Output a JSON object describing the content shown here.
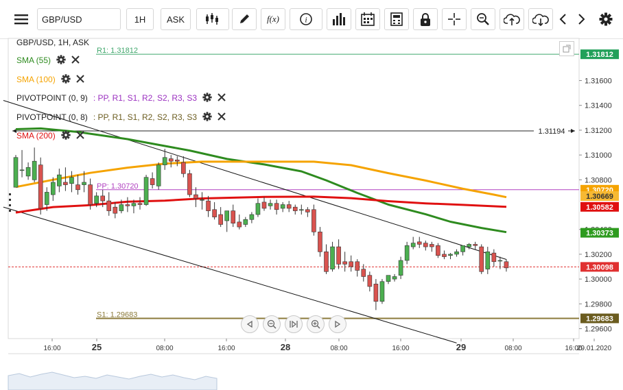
{
  "toolbar": {
    "menu_icon": "hamburger-menu-icon",
    "symbol": "GBP/USD",
    "timeframe": "1H",
    "price_type": "ASK",
    "tools": [
      "candlestick-type-icon",
      "draw-pencil-icon",
      "function-icon",
      "info-icon",
      "volume-bars-icon",
      "calendar-icon",
      "calculator-icon",
      "lock-icon",
      "crosshair-icon",
      "zoom-icon",
      "cloud-upload-icon",
      "cloud-download-icon",
      "chevron-left-icon",
      "chevron-right-icon",
      "gear-icon"
    ],
    "fx_label": "f(x)"
  },
  "legend": [
    {
      "label": "GBP/USD, 1H, ASK",
      "color": "#222222"
    },
    {
      "label": "SMA (55)",
      "color": "#2e8b1f"
    },
    {
      "label": "SMA (100)",
      "color": "#f5a300"
    },
    {
      "label": "PIVOTPOINT (0, 9)",
      "color": "#222222",
      "suffix": ": PP, R1, S1, R2, S2, R3, S3",
      "suffix_color": "#9b30c0"
    },
    {
      "label": "PIVOTPOINT (0, 8)",
      "color": "#222222",
      "suffix": ": PP, R1, S1, R2, S2, R3, S3",
      "suffix_color": "#6b5c1f"
    },
    {
      "label": "SMA (200)",
      "color": "#e01010"
    }
  ],
  "chart_data": {
    "type": "candlestick",
    "instrument": "GBP/USD",
    "interval": "1H",
    "y_range": [
      1.2952,
      1.3194
    ],
    "y_ticks": [
      "1.31600",
      "1.31400",
      "1.31200",
      "1.31000",
      "1.30800",
      "1.30400",
      "1.30200",
      "1.30000",
      "1.29800",
      "1.29600"
    ],
    "x_ticks": [
      "16:00",
      "25",
      "08:00",
      "16:00",
      "28",
      "08:00",
      "16:00",
      "29",
      "08:00",
      "16:00",
      "29.01.2020"
    ],
    "bold_x_ticks": [
      "25",
      "28",
      "29"
    ],
    "last_price": "1.30098",
    "candles": [
      [
        1.3074,
        1.31,
        1.3098,
        1.3074
      ],
      [
        1.3088,
        1.3104,
        1.3088,
        1.3082
      ],
      [
        1.3083,
        1.3094,
        1.309,
        1.308
      ],
      [
        1.308,
        1.3106,
        1.3095,
        1.3078
      ],
      [
        1.3092,
        1.3098,
        1.3057,
        1.3052
      ],
      [
        1.306,
        1.3074,
        1.307,
        1.3055
      ],
      [
        1.3068,
        1.3082,
        1.3078,
        1.3063
      ],
      [
        1.3075,
        1.3089,
        1.3084,
        1.307
      ],
      [
        1.3078,
        1.309,
        1.3076,
        1.3071
      ],
      [
        1.3077,
        1.3087,
        1.3082,
        1.307
      ],
      [
        1.3076,
        1.3084,
        1.3072,
        1.3068
      ],
      [
        1.3076,
        1.3087,
        1.3078,
        1.307
      ],
      [
        1.3076,
        1.3081,
        1.306,
        1.3056
      ],
      [
        1.3061,
        1.307,
        1.3067,
        1.3058
      ],
      [
        1.3067,
        1.3072,
        1.3063,
        1.3058
      ],
      [
        1.3063,
        1.307,
        1.3055,
        1.3051
      ],
      [
        1.3058,
        1.3062,
        1.3053,
        1.3049
      ],
      [
        1.3055,
        1.3064,
        1.306,
        1.3053
      ],
      [
        1.306,
        1.3066,
        1.3059,
        1.3054
      ],
      [
        1.3059,
        1.3064,
        1.3061,
        1.3053
      ],
      [
        1.3061,
        1.3066,
        1.306,
        1.3056
      ],
      [
        1.306,
        1.3084,
        1.3082,
        1.3059
      ],
      [
        1.3081,
        1.3086,
        1.3076,
        1.3073
      ],
      [
        1.3075,
        1.3094,
        1.3092,
        1.3072
      ],
      [
        1.3092,
        1.3105,
        1.3098,
        1.3088
      ],
      [
        1.3097,
        1.31,
        1.3095,
        1.309
      ],
      [
        1.3096,
        1.3099,
        1.3095,
        1.3091
      ],
      [
        1.3094,
        1.3099,
        1.3085,
        1.3082
      ],
      [
        1.3085,
        1.3088,
        1.3068,
        1.3066
      ],
      [
        1.3068,
        1.3074,
        1.3065,
        1.3058
      ],
      [
        1.3064,
        1.307,
        1.3064,
        1.3056
      ],
      [
        1.3063,
        1.3067,
        1.3055,
        1.305
      ],
      [
        1.3056,
        1.3062,
        1.305,
        1.3048
      ],
      [
        1.3052,
        1.3058,
        1.3044,
        1.3042
      ],
      [
        1.3047,
        1.3054,
        1.3055,
        1.3038
      ],
      [
        1.3055,
        1.306,
        1.3045,
        1.3042
      ],
      [
        1.3046,
        1.3052,
        1.3042,
        1.304
      ],
      [
        1.3044,
        1.305,
        1.3048,
        1.3042
      ],
      [
        1.3048,
        1.3054,
        1.3052,
        1.3045
      ],
      [
        1.3052,
        1.3065,
        1.3061,
        1.305
      ],
      [
        1.3062,
        1.3066,
        1.3057,
        1.3055
      ],
      [
        1.3059,
        1.3064,
        1.3061,
        1.3056
      ],
      [
        1.3061,
        1.3064,
        1.3056,
        1.3052
      ],
      [
        1.3057,
        1.3062,
        1.306,
        1.3054
      ],
      [
        1.306,
        1.3063,
        1.3057,
        1.3054
      ],
      [
        1.3058,
        1.306,
        1.3055,
        1.3052
      ],
      [
        1.3056,
        1.306,
        1.3056,
        1.3052
      ],
      [
        1.3056,
        1.3058,
        1.3054,
        1.305
      ],
      [
        1.3056,
        1.306,
        1.3038,
        1.3035
      ],
      [
        1.3038,
        1.3042,
        1.3022,
        1.3018
      ],
      [
        1.3022,
        1.3028,
        1.3006,
        1.3004
      ],
      [
        1.3008,
        1.303,
        1.3026,
        1.3006
      ],
      [
        1.3026,
        1.3032,
        1.3012,
        1.3008
      ],
      [
        1.3014,
        1.3022,
        1.3012,
        1.3006
      ],
      [
        1.3014,
        1.3019,
        1.301,
        1.3006
      ],
      [
        1.3014,
        1.3016,
        1.3007,
        1.3002
      ],
      [
        1.3008,
        1.3012,
        1.3002,
        1.2998
      ],
      [
        1.3003,
        1.3006,
        1.2994,
        1.299
      ],
      [
        1.2996,
        1.3,
        1.2982,
        1.2975
      ],
      [
        1.2982,
        1.3,
        1.2998,
        1.298
      ],
      [
        1.2998,
        1.3002,
        1.3003,
        1.2996
      ],
      [
        1.3,
        1.3004,
        1.3002,
        1.2998
      ],
      [
        1.3003,
        1.3018,
        1.3015,
        1.3
      ],
      [
        1.3015,
        1.303,
        1.3027,
        1.3012
      ],
      [
        1.3026,
        1.3034,
        1.3029,
        1.3024
      ],
      [
        1.303,
        1.3034,
        1.3028,
        1.3025
      ],
      [
        1.3029,
        1.3031,
        1.3026,
        1.3023
      ],
      [
        1.3028,
        1.303,
        1.3026,
        1.3022
      ],
      [
        1.3027,
        1.3029,
        1.3019,
        1.3017
      ],
      [
        1.302,
        1.3023,
        1.3018,
        1.3016
      ],
      [
        1.3019,
        1.3021,
        1.302,
        1.3016
      ],
      [
        1.302,
        1.3024,
        1.3022,
        1.3018
      ],
      [
        1.3022,
        1.3026,
        1.3027,
        1.3019
      ],
      [
        1.3026,
        1.3029,
        1.3028,
        1.3024
      ],
      [
        1.3028,
        1.303,
        1.3027,
        1.3024
      ],
      [
        1.3026,
        1.3028,
        1.3006,
        1.3004
      ],
      [
        1.3008,
        1.3026,
        1.3022,
        1.3004
      ],
      [
        1.3021,
        1.3024,
        1.3014,
        1.301
      ],
      [
        1.3015,
        1.3018,
        1.3015,
        1.3008
      ],
      [
        1.3014,
        1.3016,
        1.3009,
        1.3006
      ]
    ],
    "series": [
      {
        "name": "SMA (55)",
        "color": "#2e8b1f",
        "points": [
          [
            0,
            1.31208
          ],
          [
            4,
            1.31214
          ],
          [
            10,
            1.31186
          ],
          [
            18,
            1.31128
          ],
          [
            28,
            1.31036
          ],
          [
            34,
            1.30968
          ],
          [
            40,
            1.30924
          ],
          [
            46,
            1.30868
          ],
          [
            50,
            1.30796
          ],
          [
            55,
            1.30694
          ],
          [
            60,
            1.306
          ],
          [
            66,
            1.30522
          ],
          [
            70,
            1.30462
          ],
          [
            75,
            1.30412
          ],
          [
            79,
            1.30378
          ]
        ]
      },
      {
        "name": "SMA (100)",
        "color": "#f5a300",
        "points": [
          [
            0,
            1.30742
          ],
          [
            6,
            1.308
          ],
          [
            12,
            1.30856
          ],
          [
            18,
            1.30898
          ],
          [
            24,
            1.3093
          ],
          [
            30,
            1.30946
          ],
          [
            40,
            1.30946
          ],
          [
            48,
            1.30946
          ],
          [
            54,
            1.30918
          ],
          [
            60,
            1.30854
          ],
          [
            66,
            1.30794
          ],
          [
            72,
            1.30728
          ],
          [
            77,
            1.3068
          ],
          [
            79,
            1.3066
          ]
        ]
      },
      {
        "name": "SMA (200)",
        "color": "#e01010",
        "points": [
          [
            0,
            1.30536
          ],
          [
            6,
            1.3058
          ],
          [
            12,
            1.30596
          ],
          [
            18,
            1.30624
          ],
          [
            24,
            1.30632
          ],
          [
            30,
            1.3065
          ],
          [
            40,
            1.30662
          ],
          [
            48,
            1.30664
          ],
          [
            54,
            1.30652
          ],
          [
            60,
            1.30628
          ],
          [
            66,
            1.3061
          ],
          [
            72,
            1.30598
          ],
          [
            79,
            1.30582
          ]
        ]
      }
    ],
    "levels": [
      {
        "name": "R1",
        "value": 1.31812,
        "label": "R1: 1.31812",
        "color": "#3fa66b"
      },
      {
        "name": "PP",
        "value": 1.3072,
        "label": "PP: 1.30720",
        "color": "#b040c0"
      },
      {
        "name": "S1",
        "value": 1.29683,
        "label": "S1: 1.29683",
        "color": "#8b7a3a"
      },
      {
        "name": "marker",
        "value": 1.31194,
        "label": "1.31194",
        "color": "#222222"
      }
    ],
    "price_tags": [
      {
        "text": "1.31812",
        "bg": "#22a05a",
        "value": 1.31812
      },
      {
        "text": "1.30720",
        "bg": "#f5a300",
        "value": 1.3072
      },
      {
        "text": "1.30669",
        "bg": "#f7b933",
        "value": 1.30669
      },
      {
        "text": "1.30582",
        "bg": "#e01010",
        "value": 1.30582
      },
      {
        "text": "1.30373",
        "bg": "#2e9b1f",
        "value": 1.30373
      },
      {
        "text": "1.30098",
        "bg": "#e03030",
        "value": 1.30098
      },
      {
        "text": "1.29683",
        "bg": "#6b5c1f",
        "value": 1.29683
      }
    ],
    "trendlines": [
      {
        "from": [
          -2,
          1.3144
        ],
        "to": [
          79,
          1.30158
        ]
      },
      {
        "from": [
          -2,
          1.3058
        ],
        "to": [
          71,
          1.29485
        ]
      }
    ],
    "navigator_icons": [
      "scroll-left-icon",
      "zoom-out-icon",
      "pause-play-icon",
      "zoom-in-icon",
      "scroll-right-icon"
    ]
  }
}
